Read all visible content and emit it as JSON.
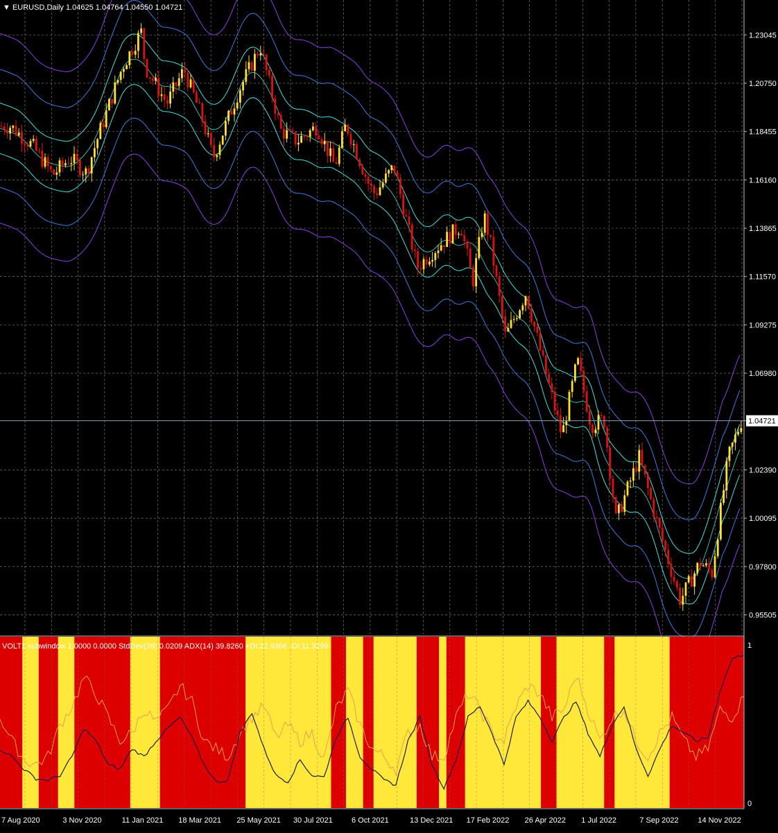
{
  "header": {
    "symbol": "EURUSD,Daily",
    "ohlc": "1.04625 1.04764 1.04550 1.04721"
  },
  "subwindow": {
    "caption": "VOLT1 subwindow 1.0000 0.0000  StdDev(26) 0.0209  ADX(14) 39.8260 +DI:22.9366 -DI:11.3299",
    "scale_top": "1",
    "scale_bottom": "0"
  },
  "colors": {
    "background": "#000000",
    "grid": "#8a8a8a",
    "bull_candle": "#ffe030",
    "bear_candle": "#e01010",
    "band_inner": "#40e0e0",
    "band_mid": "#3a7ce0",
    "band_outer": "#8a40e0",
    "zone_yellow": "#ffe83a",
    "zone_red": "#dd0000",
    "stddev_line": "#1c1c4a",
    "adx_line": "#e8a050"
  },
  "chart_data": [
    {
      "type": "candlestick",
      "title": "EURUSD,Daily",
      "ylim": [
        0.946,
        1.247
      ],
      "y_ticks": [
        "1.23045",
        "1.20750",
        "1.18455",
        "1.16160",
        "1.13865",
        "1.11570",
        "1.09275",
        "1.06980",
        "1.04721",
        "1.02390",
        "1.00095",
        "0.97800",
        "0.95505"
      ],
      "x_ticks": [
        "7 Aug 2020",
        "3 Nov 2020",
        "11 Jan 2021",
        "18 Mar 2021",
        "25 May 2021",
        "30 Jul 2021",
        "6 Oct 2021",
        "13 Dec 2021",
        "17 Feb 2022",
        "26 Apr 2022",
        "1 Jul 2022",
        "7 Sep 2022",
        "14 Nov 2022"
      ],
      "current_price": 1.04721,
      "close_series": [
        {
          "x": "2020-08-07",
          "y": 1.187
        },
        {
          "x": "2020-09-01",
          "y": 1.178
        },
        {
          "x": "2020-09-25",
          "y": 1.164
        },
        {
          "x": "2020-10-15",
          "y": 1.172
        },
        {
          "x": "2020-11-03",
          "y": 1.165
        },
        {
          "x": "2020-11-20",
          "y": 1.186
        },
        {
          "x": "2020-12-15",
          "y": 1.215
        },
        {
          "x": "2021-01-06",
          "y": 1.232
        },
        {
          "x": "2021-01-11",
          "y": 1.215
        },
        {
          "x": "2021-02-05",
          "y": 1.198
        },
        {
          "x": "2021-02-25",
          "y": 1.214
        },
        {
          "x": "2021-03-18",
          "y": 1.191
        },
        {
          "x": "2021-03-31",
          "y": 1.172
        },
        {
          "x": "2021-04-30",
          "y": 1.204
        },
        {
          "x": "2021-05-25",
          "y": 1.225
        },
        {
          "x": "2021-06-18",
          "y": 1.185
        },
        {
          "x": "2021-07-07",
          "y": 1.18
        },
        {
          "x": "2021-07-30",
          "y": 1.187
        },
        {
          "x": "2021-08-20",
          "y": 1.168
        },
        {
          "x": "2021-09-02",
          "y": 1.188
        },
        {
          "x": "2021-09-30",
          "y": 1.158
        },
        {
          "x": "2021-10-06",
          "y": 1.155
        },
        {
          "x": "2021-10-28",
          "y": 1.168
        },
        {
          "x": "2021-11-24",
          "y": 1.12
        },
        {
          "x": "2021-12-13",
          "y": 1.128
        },
        {
          "x": "2022-01-14",
          "y": 1.14
        },
        {
          "x": "2022-01-28",
          "y": 1.113
        },
        {
          "x": "2022-02-10",
          "y": 1.145
        },
        {
          "x": "2022-02-17",
          "y": 1.133
        },
        {
          "x": "2022-03-07",
          "y": 1.087
        },
        {
          "x": "2022-03-31",
          "y": 1.108
        },
        {
          "x": "2022-04-26",
          "y": 1.065
        },
        {
          "x": "2022-05-12",
          "y": 1.04
        },
        {
          "x": "2022-05-30",
          "y": 1.076
        },
        {
          "x": "2022-06-15",
          "y": 1.045
        },
        {
          "x": "2022-06-30",
          "y": 1.048
        },
        {
          "x": "2022-07-14",
          "y": 1.0
        },
        {
          "x": "2022-08-10",
          "y": 1.03
        },
        {
          "x": "2022-08-30",
          "y": 1.0
        },
        {
          "x": "2022-09-27",
          "y": 0.962
        },
        {
          "x": "2022-10-20",
          "y": 0.98
        },
        {
          "x": "2022-11-03",
          "y": 0.975
        },
        {
          "x": "2022-11-22",
          "y": 1.03
        },
        {
          "x": "2022-12-07",
          "y": 1.047
        }
      ],
      "bands": {
        "description_levels": [
          "inner",
          "mid",
          "outer"
        ],
        "mid_offsets": [
          0.012,
          0.028,
          0.045
        ]
      }
    },
    {
      "type": "area",
      "title": "VOLT1 subwindow",
      "ylim": [
        0,
        1
      ],
      "zones": [
        {
          "from": 0.0,
          "to": 0.03,
          "color": "red"
        },
        {
          "from": 0.03,
          "to": 0.052,
          "color": "yellow"
        },
        {
          "from": 0.052,
          "to": 0.078,
          "color": "red"
        },
        {
          "from": 0.078,
          "to": 0.1,
          "color": "yellow"
        },
        {
          "from": 0.1,
          "to": 0.175,
          "color": "red"
        },
        {
          "from": 0.175,
          "to": 0.215,
          "color": "yellow"
        },
        {
          "from": 0.215,
          "to": 0.232,
          "color": "red"
        },
        {
          "from": 0.232,
          "to": 0.33,
          "color": "red"
        },
        {
          "from": 0.33,
          "to": 0.445,
          "color": "yellow"
        },
        {
          "from": 0.445,
          "to": 0.465,
          "color": "red"
        },
        {
          "from": 0.465,
          "to": 0.488,
          "color": "yellow"
        },
        {
          "from": 0.488,
          "to": 0.502,
          "color": "red"
        },
        {
          "from": 0.502,
          "to": 0.56,
          "color": "yellow"
        },
        {
          "from": 0.56,
          "to": 0.59,
          "color": "red"
        },
        {
          "from": 0.59,
          "to": 0.6,
          "color": "yellow"
        },
        {
          "from": 0.6,
          "to": 0.625,
          "color": "red"
        },
        {
          "from": 0.625,
          "to": 0.727,
          "color": "yellow"
        },
        {
          "from": 0.727,
          "to": 0.748,
          "color": "red"
        },
        {
          "from": 0.748,
          "to": 0.812,
          "color": "yellow"
        },
        {
          "from": 0.812,
          "to": 0.826,
          "color": "red"
        },
        {
          "from": 0.826,
          "to": 0.9,
          "color": "yellow"
        },
        {
          "from": 0.9,
          "to": 1.0,
          "color": "red"
        }
      ],
      "stddev_series": [
        0.35,
        0.3,
        0.22,
        0.16,
        0.15,
        0.18,
        0.3,
        0.48,
        0.4,
        0.25,
        0.22,
        0.35,
        0.3,
        0.4,
        0.48,
        0.55,
        0.42,
        0.25,
        0.14,
        0.15,
        0.45,
        0.58,
        0.35,
        0.18,
        0.14,
        0.28,
        0.18,
        0.17,
        0.42,
        0.55,
        0.3,
        0.22,
        0.15,
        0.12,
        0.4,
        0.55,
        0.25,
        0.1,
        0.28,
        0.55,
        0.62,
        0.45,
        0.25,
        0.55,
        0.65,
        0.55,
        0.4,
        0.55,
        0.65,
        0.45,
        0.3,
        0.5,
        0.62,
        0.35,
        0.18,
        0.35,
        0.5,
        0.45,
        0.4,
        0.42,
        0.72,
        0.92,
        0.95
      ],
      "adx_series": [
        0.55,
        0.4,
        0.28,
        0.25,
        0.3,
        0.5,
        0.62,
        0.8,
        0.7,
        0.55,
        0.4,
        0.45,
        0.6,
        0.52,
        0.6,
        0.75,
        0.65,
        0.4,
        0.35,
        0.3,
        0.45,
        0.55,
        0.62,
        0.42,
        0.5,
        0.4,
        0.45,
        0.28,
        0.6,
        0.72,
        0.5,
        0.35,
        0.3,
        0.22,
        0.45,
        0.5,
        0.3,
        0.3,
        0.55,
        0.7,
        0.6,
        0.45,
        0.4,
        0.62,
        0.75,
        0.7,
        0.55,
        0.6,
        0.82,
        0.6,
        0.4,
        0.55,
        0.6,
        0.4,
        0.3,
        0.45,
        0.55,
        0.4,
        0.3,
        0.35,
        0.6,
        0.55,
        0.68
      ]
    }
  ]
}
